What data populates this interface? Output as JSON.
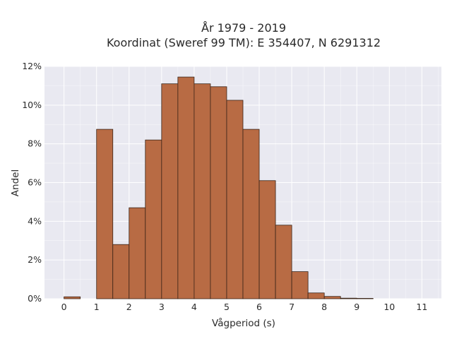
{
  "chart_data": {
    "type": "bar",
    "title_line1": "År 1979 - 2019",
    "title_line2": "Koordinat (Sweref 99 TM): E 354407, N 6291312",
    "xlabel": "Vågperiod (s)",
    "ylabel": "Andel",
    "bin_width": 0.5,
    "bins": [
      {
        "x0": 0.0,
        "value": 0.1
      },
      {
        "x0": 0.5,
        "value": 0.0
      },
      {
        "x0": 1.0,
        "value": 8.75
      },
      {
        "x0": 1.5,
        "value": 2.8
      },
      {
        "x0": 2.0,
        "value": 4.7
      },
      {
        "x0": 2.5,
        "value": 8.2
      },
      {
        "x0": 3.0,
        "value": 11.1
      },
      {
        "x0": 3.5,
        "value": 11.45
      },
      {
        "x0": 4.0,
        "value": 11.1
      },
      {
        "x0": 4.5,
        "value": 10.95
      },
      {
        "x0": 5.0,
        "value": 10.25
      },
      {
        "x0": 5.5,
        "value": 8.75
      },
      {
        "x0": 6.0,
        "value": 6.1
      },
      {
        "x0": 6.5,
        "value": 3.8
      },
      {
        "x0": 7.0,
        "value": 1.4
      },
      {
        "x0": 7.5,
        "value": 0.3
      },
      {
        "x0": 8.0,
        "value": 0.12
      },
      {
        "x0": 8.5,
        "value": 0.03
      },
      {
        "x0": 9.0,
        "value": 0.02
      }
    ],
    "x_ticks": [
      0,
      1,
      2,
      3,
      4,
      5,
      6,
      7,
      8,
      9,
      10,
      11
    ],
    "x_tick_labels": [
      "0",
      "1",
      "2",
      "3",
      "4",
      "5",
      "6",
      "7",
      "8",
      "9",
      "10",
      "11"
    ],
    "y_ticks": [
      0,
      2,
      4,
      6,
      8,
      10,
      12
    ],
    "y_tick_labels": [
      "0%",
      "2%",
      "4%",
      "6%",
      "8%",
      "10%",
      "12%"
    ],
    "xlim": [
      -0.6,
      11.6
    ],
    "ylim": [
      0,
      12
    ],
    "grid": true,
    "colors": {
      "bar_fill": "#b86b44",
      "bar_stroke": "#3a2418",
      "plot_bg": "#e9e9f1",
      "grid": "#ffffff"
    }
  }
}
